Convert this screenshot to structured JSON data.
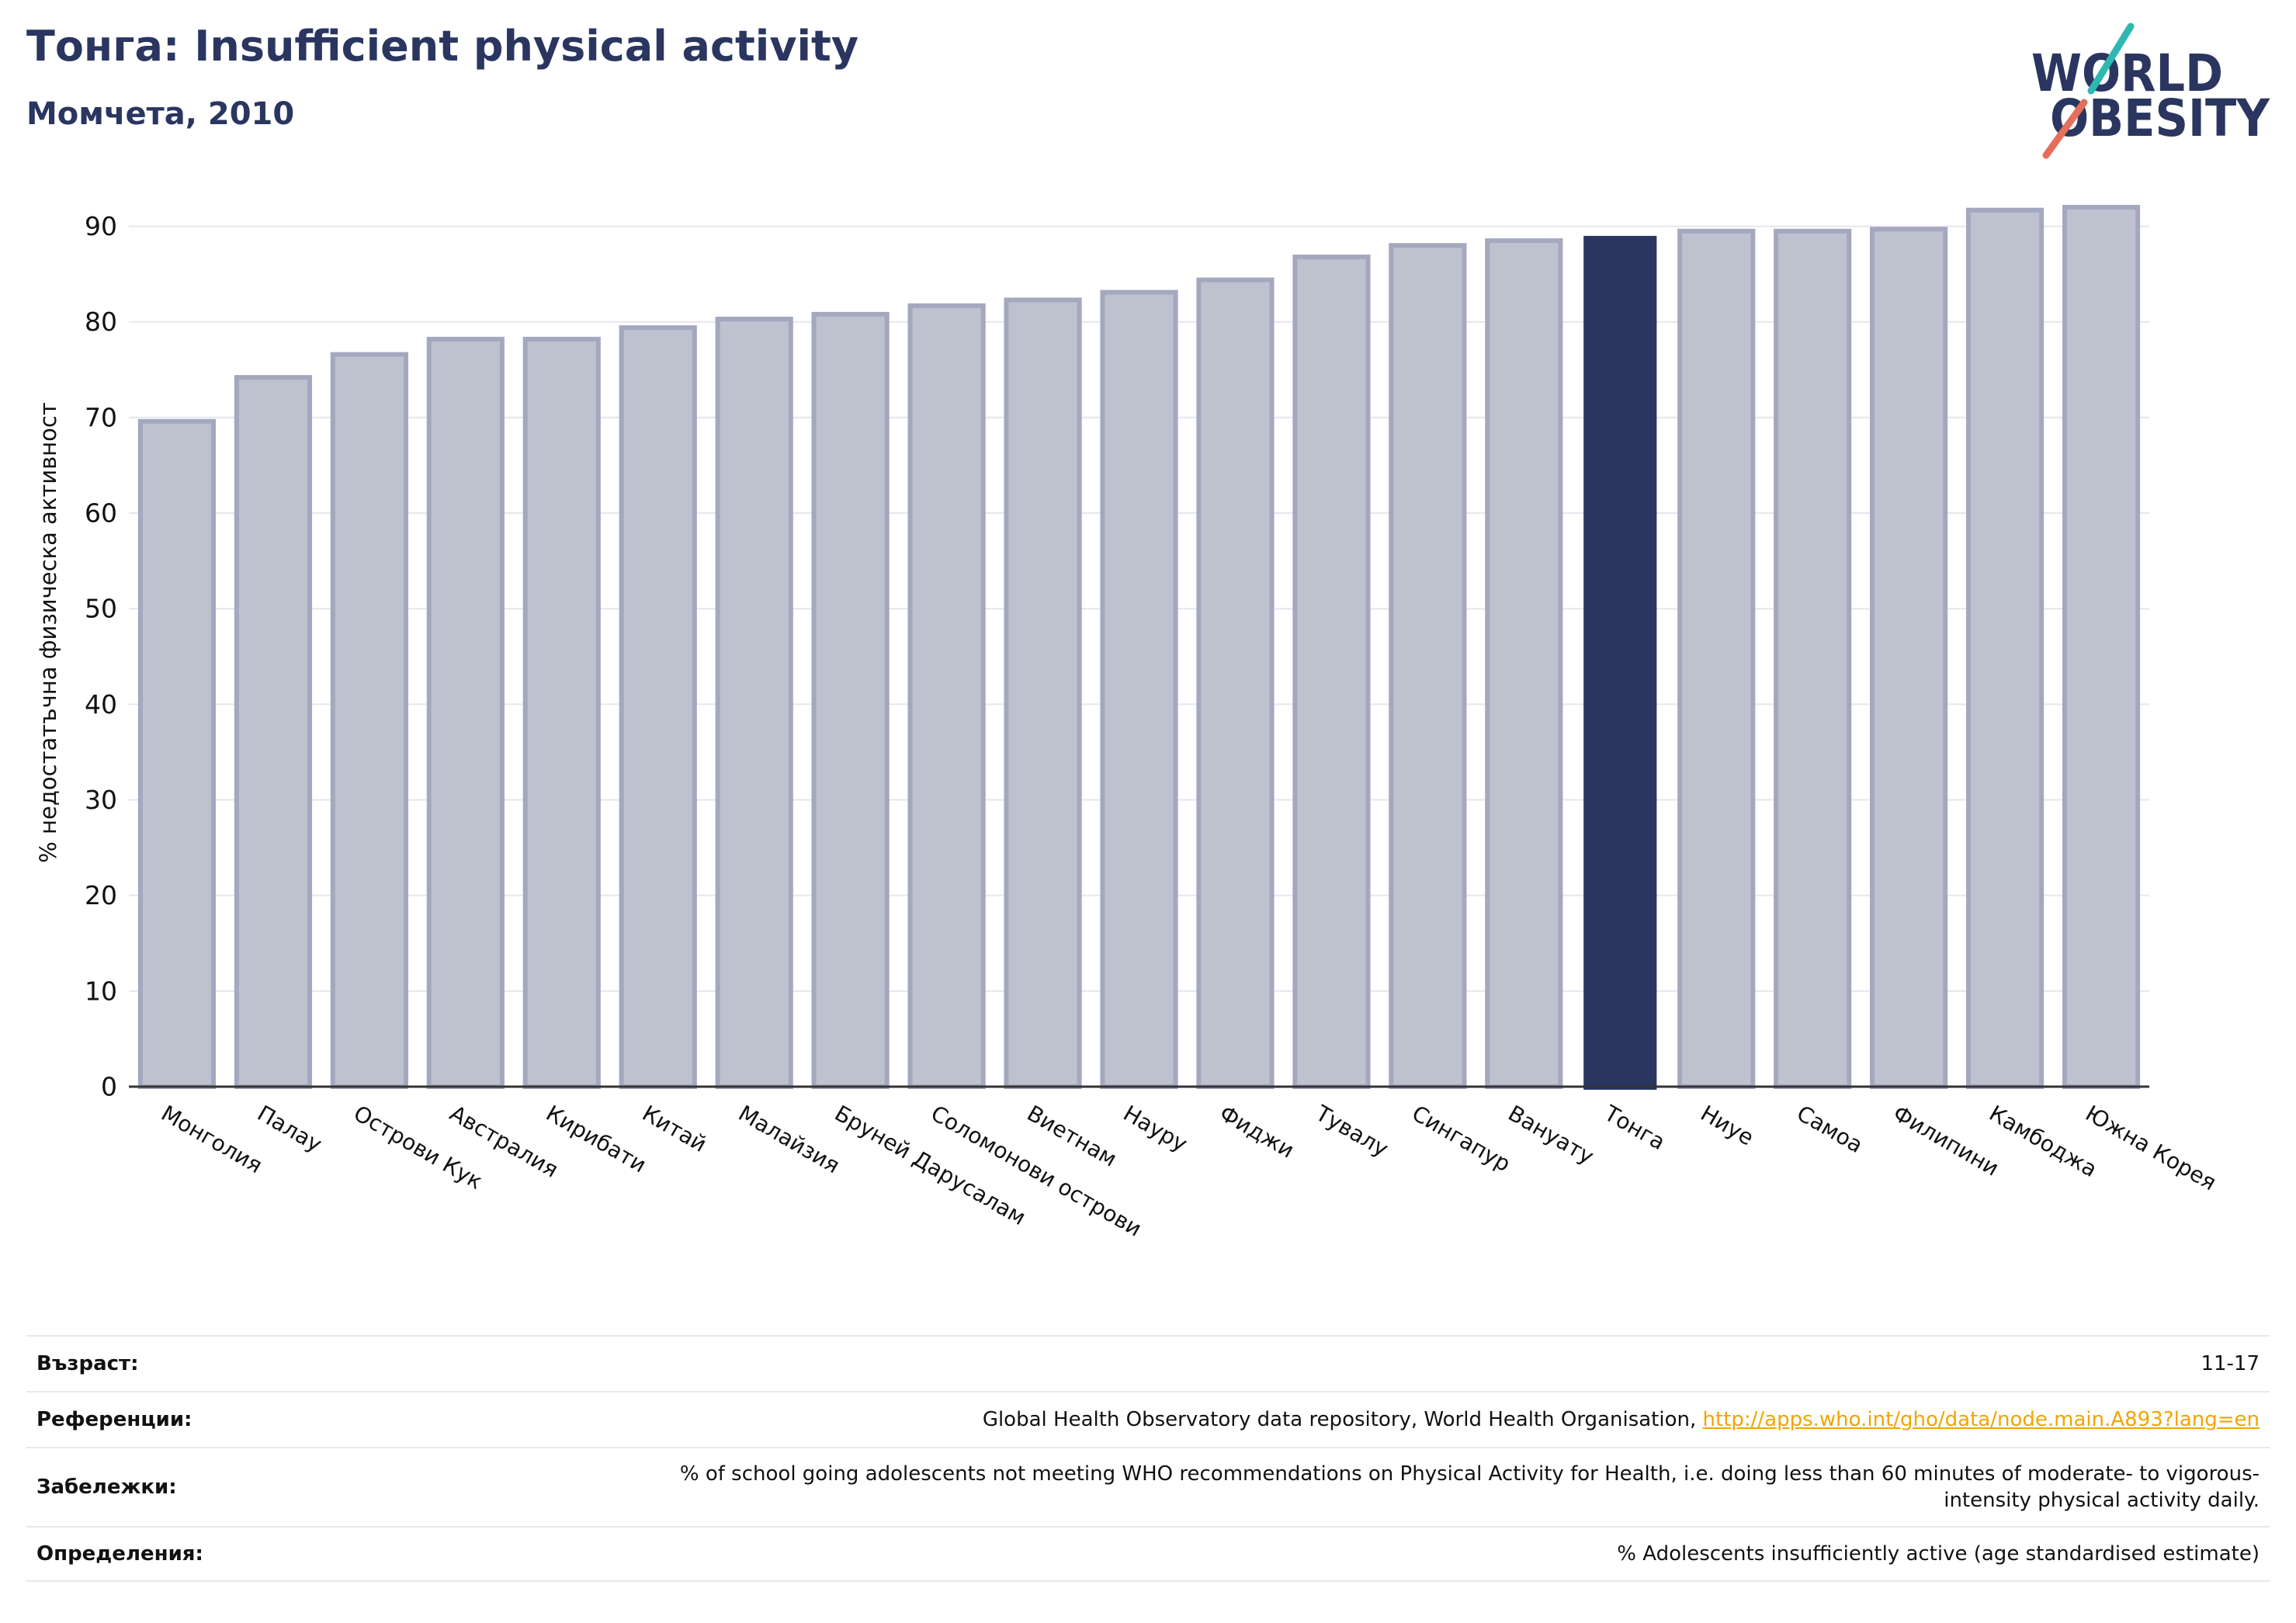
{
  "header": {
    "title": "Тонга: Insufficient physical activity",
    "subtitle": "Момчета, 2010"
  },
  "theme": {
    "navy": "#2a3660",
    "rule": "#e8e8ef",
    "link": "#f0a500"
  },
  "logo": {
    "line1": "WORLD",
    "line2": "OBESITY",
    "colors": {
      "text": "#2a3660",
      "slash_top": "#2fb8b0",
      "slash_bottom": "#e56f5b"
    }
  },
  "chart_data": {
    "type": "bar",
    "ylabel": "% недостатъчна физическа активност",
    "categories": [
      "Монголия",
      "Палау",
      "Острови Кук",
      "Австралия",
      "Кирибати",
      "Китай",
      "Малайзия",
      "Бруней Дарусалам",
      "Соломонови острови",
      "Виетнам",
      "Науру",
      "Фиджи",
      "Тувалу",
      "Сингапур",
      "Вануату",
      "Тонга",
      "Ниуе",
      "Самоа",
      "Филипини",
      "Камбоджа",
      "Южна Корея"
    ],
    "values": [
      69.6,
      74.2,
      76.6,
      78.2,
      78.2,
      79.4,
      80.3,
      80.8,
      81.7,
      82.3,
      83.1,
      84.4,
      86.8,
      88.0,
      88.5,
      89.0,
      89.5,
      89.5,
      89.7,
      91.7,
      92.0
    ],
    "highlight": "Тонга",
    "ylim": [
      0,
      95
    ],
    "yticks": [
      0,
      10,
      20,
      30,
      40,
      50,
      60,
      70,
      80,
      90
    ],
    "grid": "horizontal",
    "legend": "none",
    "colors": {
      "bar": "#bec1ce",
      "bar_edge": "#a4a8bf",
      "highlight": "#2a3660",
      "grid": "#e6e6ee",
      "axis": "#333333",
      "text": "#111111"
    }
  },
  "info": {
    "age": {
      "label": "Възраст:",
      "value": "11-17"
    },
    "references": {
      "label": "Референции:",
      "text": "Global Health Observatory data repository, World Health Organisation, ",
      "link": "http://apps.who.int/gho/data/node.main.A893?lang=en"
    },
    "notes": {
      "label": "Забележки:",
      "value": "% of school going adolescents not meeting WHO recommendations on Physical Activity for Health, i.e. doing less than 60 minutes of moderate- to vigorous-intensity physical activity daily."
    },
    "definitions": {
      "label": "Определения:",
      "value": "% Adolescents insufficiently active (age standardised estimate)"
    }
  }
}
